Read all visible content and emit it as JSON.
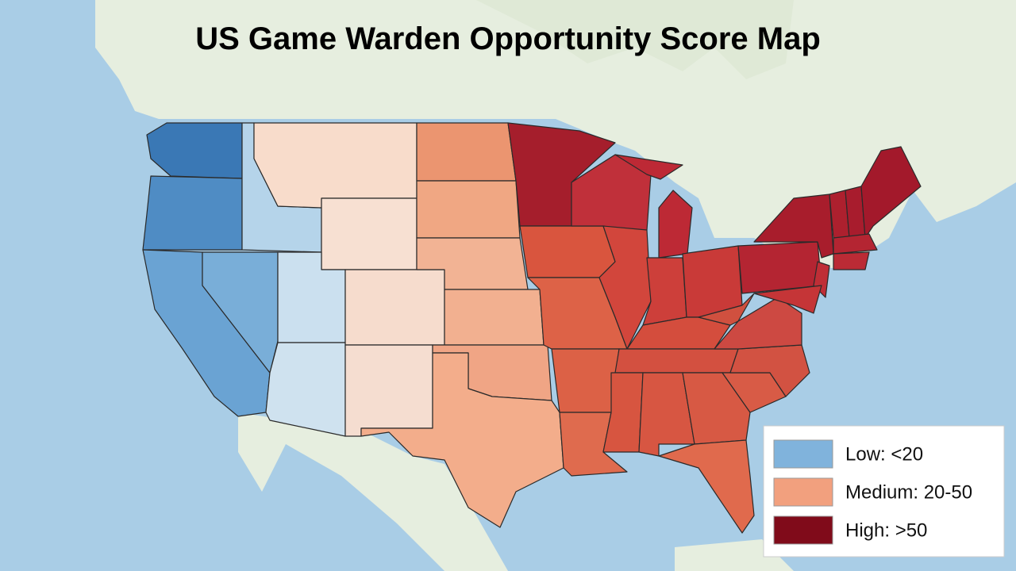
{
  "map": {
    "title": "US Game Warden Opportunity Score Map",
    "legend": [
      {
        "label": "Low: <20",
        "color": "#80b3dc"
      },
      {
        "label": "Medium: 20-50",
        "color": "#f2a07e"
      },
      {
        "label": "High: >50",
        "color": "#800b1a"
      }
    ]
  }
}
